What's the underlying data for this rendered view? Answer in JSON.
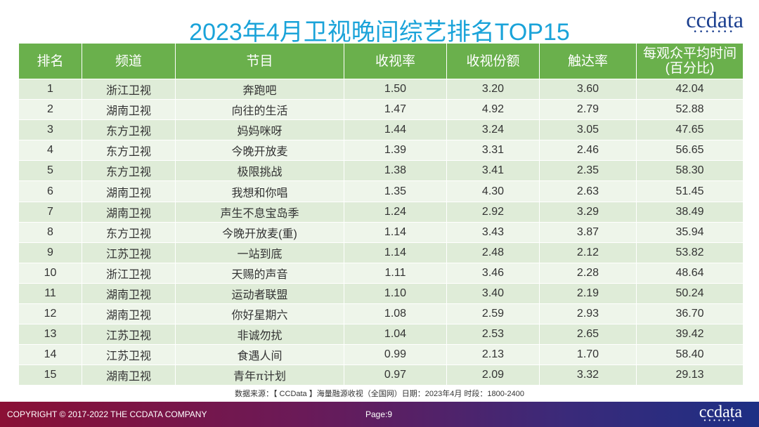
{
  "title": "2023年4月卫视晚间综艺排名TOP15",
  "logo": {
    "text": "ccdata",
    "dots": "•••••••"
  },
  "table": {
    "headers": [
      "排名",
      "频道",
      "节目",
      "收视率",
      "收视份额",
      "触达率",
      "每观众平均时间",
      "(百分比)"
    ],
    "rows": [
      [
        "1",
        "浙江卫视",
        "奔跑吧",
        "1.50",
        "3.20",
        "3.60",
        "42.04"
      ],
      [
        "2",
        "湖南卫视",
        "向往的生活",
        "1.47",
        "4.92",
        "2.79",
        "52.88"
      ],
      [
        "3",
        "东方卫视",
        "妈妈咪呀",
        "1.44",
        "3.24",
        "3.05",
        "47.65"
      ],
      [
        "4",
        "东方卫视",
        "今晚开放麦",
        "1.39",
        "3.31",
        "2.46",
        "56.65"
      ],
      [
        "5",
        "东方卫视",
        "极限挑战",
        "1.38",
        "3.41",
        "2.35",
        "58.30"
      ],
      [
        "6",
        "湖南卫视",
        "我想和你唱",
        "1.35",
        "4.30",
        "2.63",
        "51.45"
      ],
      [
        "7",
        "湖南卫视",
        "声生不息宝岛季",
        "1.24",
        "2.92",
        "3.29",
        "38.49"
      ],
      [
        "8",
        "东方卫视",
        "今晚开放麦(重)",
        "1.14",
        "3.43",
        "3.87",
        "35.94"
      ],
      [
        "9",
        "江苏卫视",
        "一站到底",
        "1.14",
        "2.48",
        "2.12",
        "53.82"
      ],
      [
        "10",
        "浙江卫视",
        "天赐的声音",
        "1.11",
        "3.46",
        "2.28",
        "48.64"
      ],
      [
        "11",
        "湖南卫视",
        "运动者联盟",
        "1.10",
        "3.40",
        "2.19",
        "50.24"
      ],
      [
        "12",
        "湖南卫视",
        "你好星期六",
        "1.08",
        "2.59",
        "2.93",
        "36.70"
      ],
      [
        "13",
        "江苏卫视",
        "非诚勿扰",
        "1.04",
        "2.53",
        "2.65",
        "39.42"
      ],
      [
        "14",
        "江苏卫视",
        "食遇人间",
        "0.99",
        "2.13",
        "1.70",
        "58.40"
      ],
      [
        "15",
        "湖南卫视",
        "青年π计划",
        "0.97",
        "2.09",
        "3.32",
        "29.13"
      ]
    ]
  },
  "source": "数据来源：【 CCData 】海量融源收视（全国网）日期：2023年4月  时段：1800-2400",
  "footer": {
    "copyright": "COPYRIGHT © 2017-2022 THE CCDATA COMPANY",
    "page": "Page:9",
    "logo_text": "ccdata",
    "logo_dots": "•••••••"
  },
  "colors": {
    "title": "#1aa3d9",
    "header_bg": "#6ab04c",
    "row_odd": "#dfecd8",
    "row_even": "#eef5ea"
  }
}
